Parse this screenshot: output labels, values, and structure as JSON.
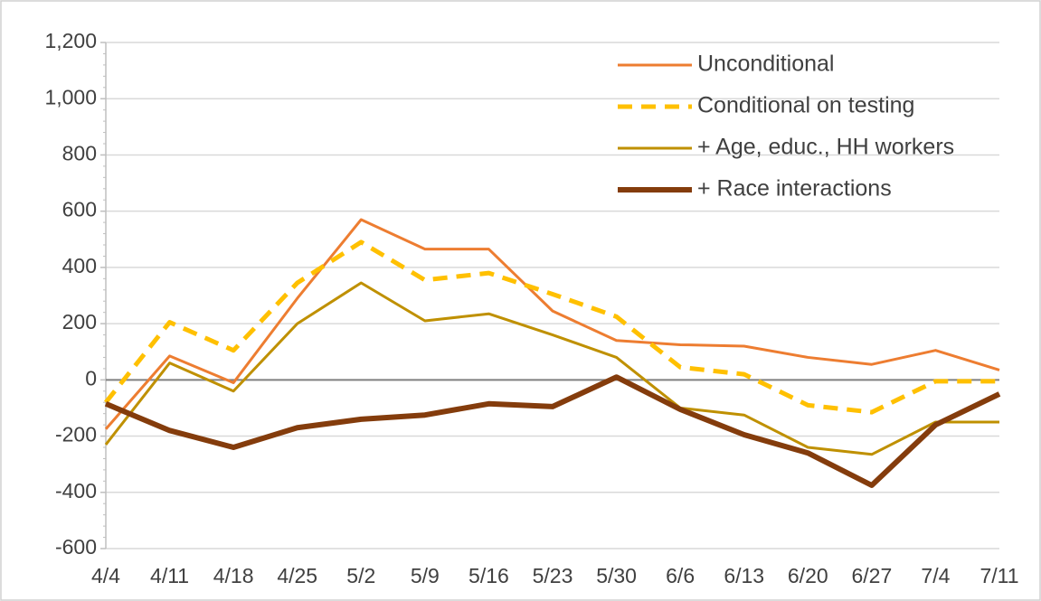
{
  "chart_data": {
    "type": "line",
    "categories": [
      "4/4",
      "4/11",
      "4/18",
      "4/25",
      "5/2",
      "5/9",
      "5/16",
      "5/23",
      "5/30",
      "6/6",
      "6/13",
      "6/20",
      "6/27",
      "7/4",
      "7/11"
    ],
    "series": [
      {
        "name": "Unconditional",
        "color": "#ed7d31",
        "line_width": 3,
        "dashed": false,
        "values": [
          -175,
          85,
          -10,
          290,
          570,
          465,
          465,
          245,
          140,
          125,
          120,
          80,
          55,
          105,
          35
        ]
      },
      {
        "name": "Conditional on testing",
        "color": "#ffc000",
        "line_width": 5,
        "dashed": true,
        "values": [
          -80,
          205,
          105,
          345,
          490,
          355,
          380,
          305,
          225,
          45,
          20,
          -90,
          -115,
          -5,
          -5
        ]
      },
      {
        "name": "+ Age, educ., HH workers",
        "color": "#bf9000",
        "line_width": 3,
        "dashed": false,
        "values": [
          -230,
          60,
          -40,
          200,
          345,
          210,
          235,
          160,
          80,
          -100,
          -125,
          -240,
          -265,
          -150,
          -150
        ]
      },
      {
        "name": "+ Race interactions",
        "color": "#843c0c",
        "line_width": 6,
        "dashed": false,
        "values": [
          -85,
          -180,
          -240,
          -170,
          -140,
          -125,
          -85,
          -95,
          10,
          -105,
          -195,
          -260,
          -375,
          -160,
          -50
        ]
      }
    ],
    "ylim": [
      -600,
      1200
    ],
    "yticks": [
      -600,
      -400,
      -200,
      0,
      200,
      400,
      600,
      800,
      {
        "value": 1000,
        "label": "1,000"
      },
      {
        "value": 1200,
        "label": "1,200"
      }
    ],
    "grid": true,
    "legend": "upper right"
  }
}
